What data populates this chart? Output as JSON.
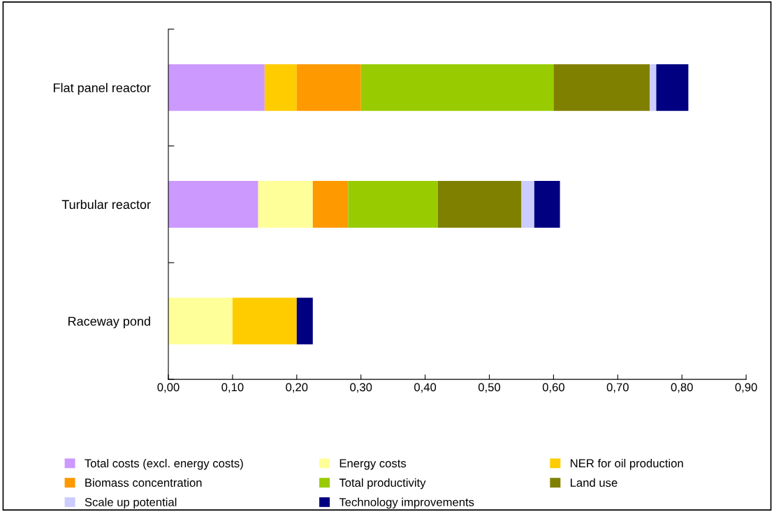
{
  "chart_data": {
    "type": "bar",
    "orientation": "horizontal",
    "stacked": true,
    "categories": [
      "Flat panel reactor",
      "Turbular reactor",
      "Raceway pond"
    ],
    "series": [
      {
        "name": "Total costs (excl. energy costs)",
        "color": "#cc99ff",
        "values": [
          0.15,
          0.14,
          0
        ]
      },
      {
        "name": "Energy costs",
        "color": "#ffff99",
        "values": [
          0,
          0.085,
          0.1
        ]
      },
      {
        "name": "NER for oil production",
        "color": "#ffcc00",
        "values": [
          0.05,
          0,
          0.1
        ]
      },
      {
        "name": "Biomass concentration",
        "color": "#ff9900",
        "values": [
          0.1,
          0.055,
          0
        ]
      },
      {
        "name": "Total productivity",
        "color": "#99cc00",
        "values": [
          0.3,
          0.14,
          0
        ]
      },
      {
        "name": "Land use",
        "color": "#808000",
        "values": [
          0.15,
          0.13,
          0
        ]
      },
      {
        "name": "Scale up potential",
        "color": "#ccccff",
        "values": [
          0.01,
          0.02,
          0
        ]
      },
      {
        "name": "Technology improvements",
        "color": "#000080",
        "values": [
          0.05,
          0.04,
          0.025
        ]
      }
    ],
    "xlim": [
      0,
      0.9
    ],
    "xticks": [
      {
        "value": 0,
        "label": "0,00"
      },
      {
        "value": 0.1,
        "label": "0,10"
      },
      {
        "value": 0.2,
        "label": "0,20"
      },
      {
        "value": 0.3,
        "label": "0,30"
      },
      {
        "value": 0.4,
        "label": "0,40"
      },
      {
        "value": 0.5,
        "label": "0,50"
      },
      {
        "value": 0.6,
        "label": "0,60"
      },
      {
        "value": 0.7,
        "label": "0,70"
      },
      {
        "value": 0.8,
        "label": "0,80"
      },
      {
        "value": 0.9,
        "label": "0,90"
      }
    ],
    "grid": false,
    "legend": "bottom"
  }
}
